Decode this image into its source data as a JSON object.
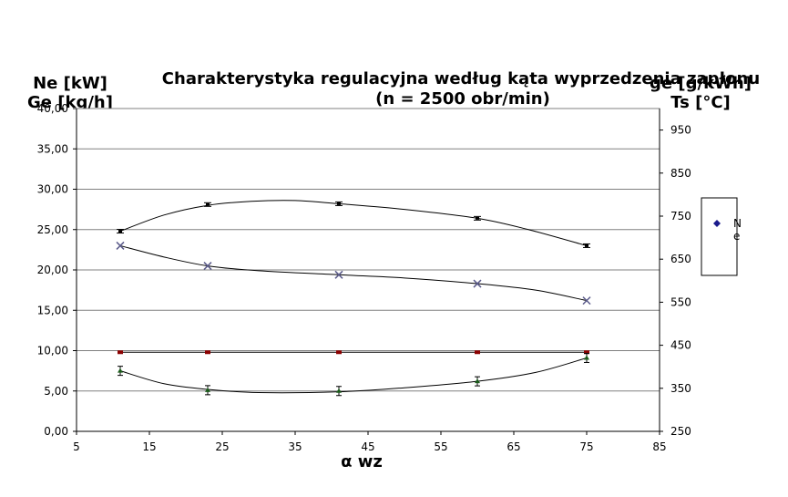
{
  "chart_data": {
    "type": "line",
    "title": "Charakterystyka regulacyjna według kąta wyprzedzenia zapłonu",
    "subtitle": "(n = 2500 obr/min)",
    "xlabel": "α wz",
    "ylabel_left_1": "Ne [kW]",
    "ylabel_left_2": "Ge [kg/h]",
    "ylabel_right_1": "ge [g/kWh]",
    "ylabel_right_2": "Ts [°C]",
    "xlim": [
      5,
      85
    ],
    "ylim_left": [
      0,
      40
    ],
    "ylim_right": [
      250,
      1000
    ],
    "x_ticks": [
      "5",
      "15",
      "25",
      "35",
      "45",
      "55",
      "65",
      "75",
      "85"
    ],
    "y_left_ticks": [
      "0,00",
      "5,00",
      "10,00",
      "15,00",
      "20,00",
      "25,00",
      "30,00",
      "35,00",
      "40,00"
    ],
    "y_right_ticks": [
      "250",
      "350",
      "450",
      "550",
      "650",
      "750",
      "850",
      "950"
    ],
    "grid": "horizontal",
    "legend_placement": "right",
    "legend_entries": [
      "Ne"
    ],
    "series": [
      {
        "marker": "dash",
        "color": "#000000",
        "x": [
          11,
          23,
          41,
          60,
          75
        ],
        "y": [
          24.8,
          28.1,
          28.2,
          26.4,
          23.0
        ],
        "curve": [
          [
            11,
            24.8
          ],
          [
            17,
            26.8
          ],
          [
            23,
            28.0
          ],
          [
            29,
            28.5
          ],
          [
            35,
            28.6
          ],
          [
            41,
            28.2
          ],
          [
            50,
            27.5
          ],
          [
            60,
            26.4
          ],
          [
            67,
            25.0
          ],
          [
            75,
            23.0
          ]
        ]
      },
      {
        "marker": "x",
        "color": "#5a5a8a",
        "x": [
          11,
          23,
          41,
          60,
          75
        ],
        "y": [
          23.0,
          20.5,
          19.4,
          18.3,
          16.2
        ],
        "curve": [
          [
            11,
            23.0
          ],
          [
            17,
            21.6
          ],
          [
            23,
            20.5
          ],
          [
            30,
            19.9
          ],
          [
            41,
            19.4
          ],
          [
            50,
            19.0
          ],
          [
            60,
            18.3
          ],
          [
            68,
            17.5
          ],
          [
            75,
            16.2
          ]
        ]
      },
      {
        "marker": "dot",
        "color": "#8b0000",
        "x": [
          11,
          23,
          41,
          60,
          75
        ],
        "y": [
          9.8,
          9.8,
          9.8,
          9.8,
          9.8
        ],
        "curve": [
          [
            11,
            9.8
          ],
          [
            75,
            9.8
          ]
        ]
      },
      {
        "marker": "triangle",
        "color": "#1a5c1a",
        "x": [
          11,
          23,
          41,
          60,
          75
        ],
        "y": [
          7.5,
          5.1,
          5.0,
          6.2,
          9.1
        ],
        "curve": [
          [
            11,
            7.5
          ],
          [
            17,
            5.9
          ],
          [
            23,
            5.2
          ],
          [
            30,
            4.8
          ],
          [
            41,
            4.9
          ],
          [
            50,
            5.4
          ],
          [
            60,
            6.2
          ],
          [
            68,
            7.3
          ],
          [
            75,
            9.1
          ]
        ]
      }
    ]
  }
}
